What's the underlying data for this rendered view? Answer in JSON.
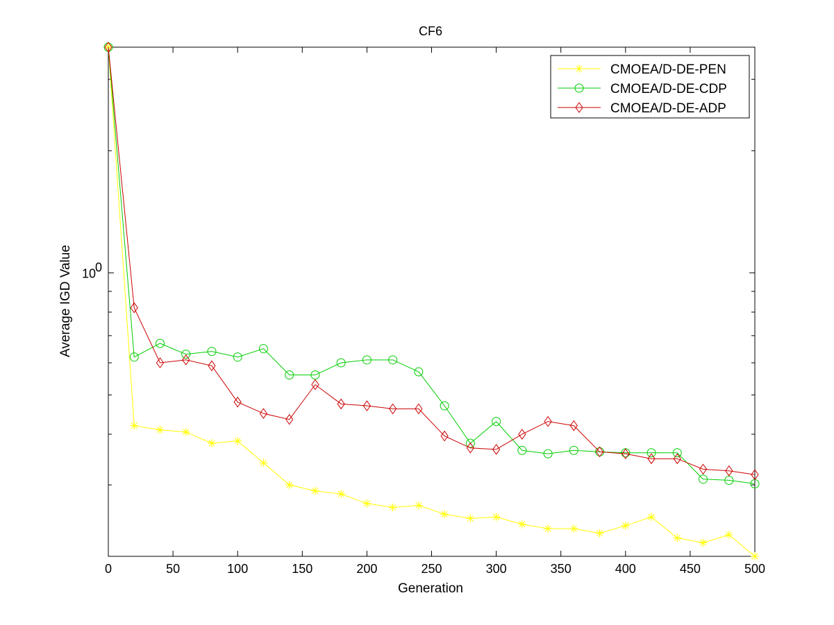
{
  "chart_data": {
    "type": "line",
    "title": "CF6",
    "xlabel": "Generation",
    "ylabel": "Average IGD Value",
    "y_scale": "log",
    "xlim": [
      0,
      500
    ],
    "ylim": [
      0.2,
      3.6
    ],
    "x_ticks": [
      "0",
      "50",
      "100",
      "150",
      "200",
      "250",
      "300",
      "350",
      "400",
      "450",
      "500"
    ],
    "y_tick_base": "10",
    "y_tick_exp": "0",
    "legend_position": "top-right",
    "grid": false,
    "x": [
      0,
      20,
      40,
      60,
      80,
      100,
      120,
      140,
      160,
      180,
      200,
      220,
      240,
      260,
      280,
      300,
      320,
      340,
      360,
      380,
      400,
      420,
      440,
      460,
      480,
      500
    ],
    "series": [
      {
        "name": "CMOEA/D-DE-PEN",
        "color": "#ffff00",
        "marker": "star",
        "values": [
          3.6,
          0.42,
          0.41,
          0.405,
          0.38,
          0.385,
          0.34,
          0.3,
          0.29,
          0.285,
          0.27,
          0.264,
          0.267,
          0.254,
          0.248,
          0.25,
          0.24,
          0.234,
          0.234,
          0.228,
          0.238,
          0.25,
          0.222,
          0.216,
          0.226,
          0.2
        ]
      },
      {
        "name": "CMOEA/D-DE-CDP",
        "color": "#00cc00",
        "marker": "circle",
        "values": [
          3.6,
          0.62,
          0.67,
          0.63,
          0.64,
          0.62,
          0.65,
          0.56,
          0.56,
          0.6,
          0.61,
          0.61,
          0.57,
          0.47,
          0.38,
          0.43,
          0.365,
          0.358,
          0.365,
          0.362,
          0.36,
          0.36,
          0.36,
          0.31,
          0.308,
          0.302
        ]
      },
      {
        "name": "CMOEA/D-DE-ADP",
        "color": "#cc0000",
        "marker": "diamond",
        "values": [
          3.6,
          0.82,
          0.6,
          0.61,
          0.59,
          0.48,
          0.45,
          0.435,
          0.53,
          0.475,
          0.47,
          0.462,
          0.462,
          0.396,
          0.37,
          0.367,
          0.4,
          0.43,
          0.42,
          0.362,
          0.358,
          0.348,
          0.348,
          0.328,
          0.325,
          0.318
        ]
      }
    ]
  }
}
